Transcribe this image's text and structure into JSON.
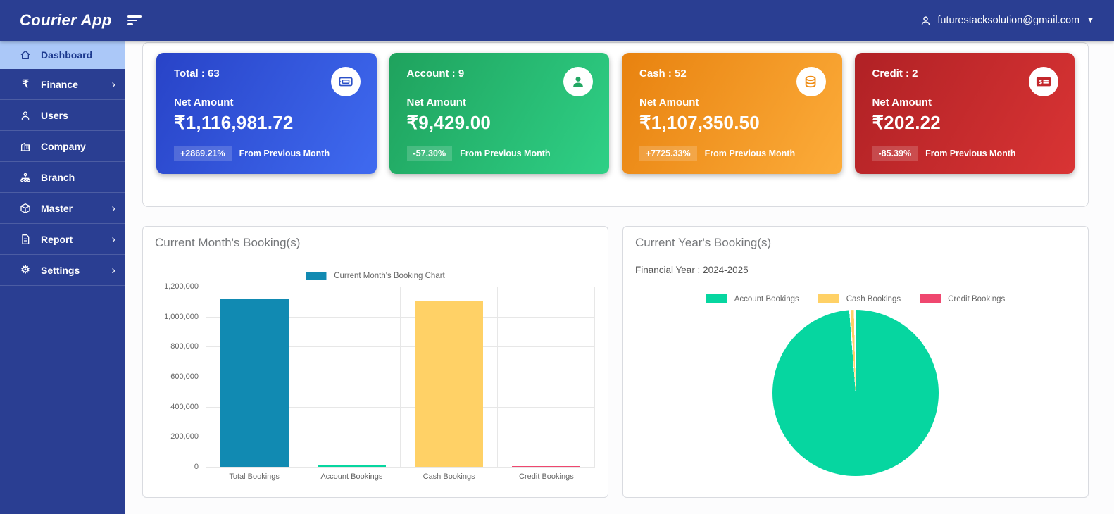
{
  "navbar": {
    "brand": "Courier App",
    "user_email": "futurestacksolution@gmail.com",
    "caret": "▼"
  },
  "sidebar": {
    "items": [
      {
        "label": "Dashboard",
        "icon": "home-icon",
        "active": true,
        "has_children": false
      },
      {
        "label": "Finance",
        "icon": "rupee-icon",
        "active": false,
        "has_children": true
      },
      {
        "label": "Users",
        "icon": "user-icon",
        "active": false,
        "has_children": false
      },
      {
        "label": "Company",
        "icon": "building-icon",
        "active": false,
        "has_children": false
      },
      {
        "label": "Branch",
        "icon": "sitemap-icon",
        "active": false,
        "has_children": false
      },
      {
        "label": "Master",
        "icon": "cube-icon",
        "active": false,
        "has_children": true
      },
      {
        "label": "Report",
        "icon": "document-icon",
        "active": false,
        "has_children": true
      },
      {
        "label": "Settings",
        "icon": "gear-icon",
        "active": false,
        "has_children": true
      }
    ]
  },
  "stats_cards": [
    {
      "title": "Total : 63",
      "net_label": "Net Amount",
      "amount": "₹1,116,981.72",
      "change": "+2869.21%",
      "change_note": "From Previous Month",
      "icon": "ticket-icon",
      "icon_color": "#2b50c8",
      "gradient_from": "#2843c7",
      "gradient_to": "#3f6af0"
    },
    {
      "title": "Account : 9",
      "net_label": "Net Amount",
      "amount": "₹9,429.00",
      "change": "-57.30%",
      "change_note": "From Previous Month",
      "icon": "person-icon",
      "icon_color": "#22a763",
      "gradient_from": "#1fa25d",
      "gradient_to": "#2fd086"
    },
    {
      "title": "Cash : 52",
      "net_label": "Net Amount",
      "amount": "₹1,107,350.50",
      "change": "+7725.33%",
      "change_note": "From Previous Month",
      "icon": "coins-icon",
      "icon_color": "#ef8a10",
      "gradient_from": "#e8820f",
      "gradient_to": "#fcac3a"
    },
    {
      "title": "Credit : 2",
      "net_label": "Net Amount",
      "amount": "₹202.22",
      "change": "-85.39%",
      "change_note": "From Previous Month",
      "icon": "money-check-icon",
      "icon_color": "#c3272b",
      "gradient_from": "#b02125",
      "gradient_to": "#d93434"
    }
  ],
  "charts": {
    "month": {
      "title": "Current Month's Booking(s)",
      "legend_label": "Current Month's Booking Chart",
      "legend_color": "#118AB2"
    },
    "year": {
      "title": "Current Year's Booking(s)",
      "financial_year": "Financial Year : 2024-2025"
    }
  },
  "chart_data": [
    {
      "type": "bar",
      "title": "Current Month's Booking(s)",
      "legend": "Current Month's Booking Chart",
      "categories": [
        "Total Bookings",
        "Account Bookings",
        "Cash Bookings",
        "Credit Bookings"
      ],
      "values": [
        1116981.72,
        9429.0,
        1107350.5,
        202.22
      ],
      "colors": [
        "#118AB2",
        "#06D6A0",
        "#FFD166",
        "#EF476F"
      ],
      "ylim": [
        0,
        1200000
      ],
      "ytick_step": 200000,
      "ytick_labels": [
        "1,200,000",
        "1,000,000",
        "800,000",
        "600,000",
        "400,000",
        "200,000",
        "0"
      ],
      "grid": true,
      "legend_position": "top"
    },
    {
      "type": "pie",
      "title": "Current Year's Booking(s)",
      "subtitle": "Financial Year : 2024-2025",
      "labels": [
        "Account Bookings",
        "Cash Bookings",
        "Credit Bookings"
      ],
      "values_pct": [
        98.9,
        0.9,
        0.2
      ],
      "colors": [
        "#06D6A0",
        "#FFD166",
        "#EF476F"
      ],
      "legend_position": "top"
    }
  ]
}
